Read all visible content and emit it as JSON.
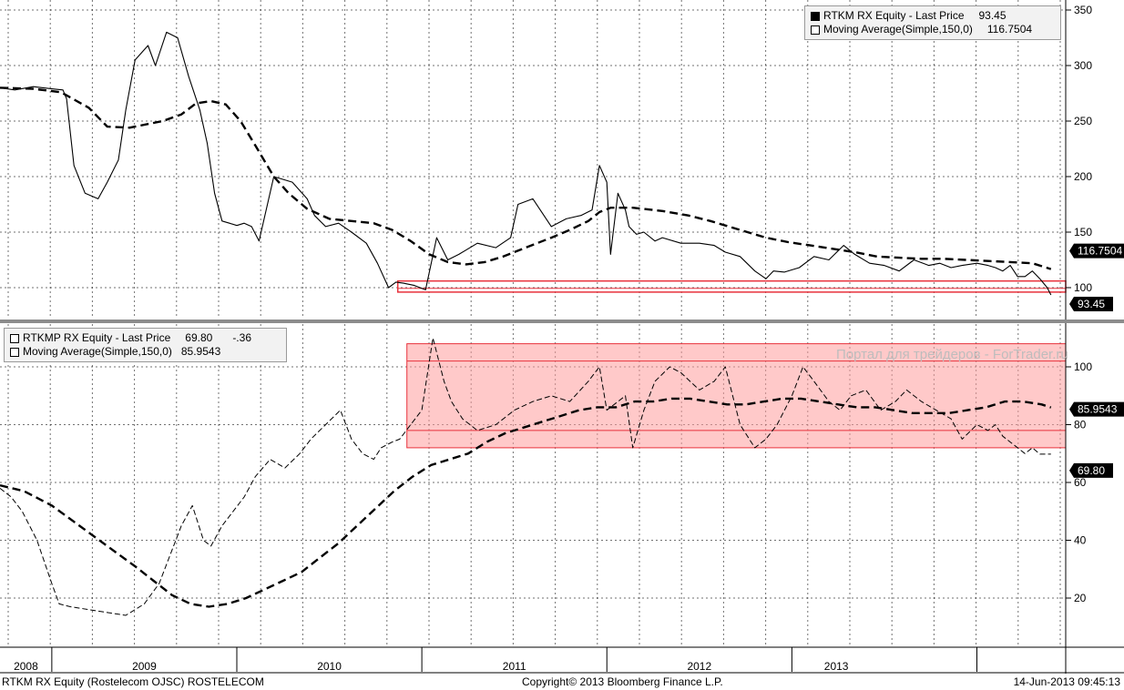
{
  "footer": {
    "left": "RTKM RX Equity (Rostelecom OJSC) ROSTELECOM",
    "center": "Copyright© 2013 Bloomberg Finance L.P.",
    "right": "14-Jun-2013 09:45:13"
  },
  "watermark": "Портал для трейдеров - ForTrader.ru",
  "colors": {
    "price": "#000000",
    "ma": "#000000",
    "band": "#ff9c9c",
    "band_line": "#e8323c",
    "grid": "#000000"
  },
  "chart_data": [
    {
      "type": "line",
      "legend": [
        {
          "name": "RTKM RX Equity - Last Price",
          "value": "93.45",
          "marker": "solid"
        },
        {
          "name": "Moving Average(Simple,150,0)",
          "value": "116.7504",
          "marker": "hollow"
        }
      ],
      "ylim": [
        70,
        350
      ],
      "yticks": [
        100,
        150,
        200,
        250,
        300,
        350
      ],
      "last_value_labels": [
        "116.7504",
        "93.45"
      ],
      "x_axis_labels": [
        "2008",
        "2009",
        "2010",
        "2011",
        "2012",
        "2013"
      ],
      "support_band": {
        "from": 2009.87,
        "to": 2013.48,
        "low": 96,
        "high": 106
      },
      "series": [
        {
          "name": "RTKM RX Equity - Last Price",
          "style": "solid",
          "x": [
            2007.72,
            2007.8,
            2007.9,
            2008.0,
            2008.06,
            2008.08,
            2008.12,
            2008.18,
            2008.25,
            2008.3,
            2008.36,
            2008.4,
            2008.45,
            2008.52,
            2008.56,
            2008.62,
            2008.68,
            2008.74,
            2008.8,
            2008.84,
            2008.88,
            2008.92,
            2008.96,
            2009.0,
            2009.04,
            2009.08,
            2009.12,
            2009.2,
            2009.3,
            2009.38,
            2009.42,
            2009.48,
            2009.55,
            2009.62,
            2009.7,
            2009.76,
            2009.82,
            2009.86,
            2009.9,
            2009.96,
            2010.02,
            2010.08,
            2010.14,
            2010.2,
            2010.3,
            2010.4,
            2010.48,
            2010.52,
            2010.6,
            2010.7,
            2010.78,
            2010.86,
            2010.92,
            2010.96,
            2011.0,
            2011.02,
            2011.06,
            2011.1,
            2011.12,
            2011.16,
            2011.2,
            2011.26,
            2011.3,
            2011.4,
            2011.5,
            2011.58,
            2011.64,
            2011.72,
            2011.8,
            2011.86,
            2011.9,
            2011.96,
            2012.04,
            2012.12,
            2012.2,
            2012.28,
            2012.34,
            2012.42,
            2012.5,
            2012.58,
            2012.66,
            2012.74,
            2012.8,
            2012.86,
            2012.92,
            2013.0,
            2013.06,
            2013.1,
            2013.14,
            2013.18,
            2013.22,
            2013.26,
            2013.3,
            2013.34,
            2013.38,
            2013.4
          ],
          "y": [
            280,
            278,
            281,
            279,
            278,
            270,
            210,
            185,
            180,
            195,
            215,
            260,
            305,
            318,
            300,
            330,
            325,
            290,
            260,
            230,
            185,
            160,
            158,
            156,
            158,
            155,
            142,
            200,
            195,
            180,
            165,
            155,
            158,
            150,
            140,
            122,
            100,
            105,
            104,
            102,
            98,
            145,
            125,
            130,
            140,
            136,
            145,
            175,
            180,
            155,
            162,
            165,
            170,
            210,
            195,
            130,
            185,
            170,
            155,
            148,
            150,
            142,
            145,
            140,
            140,
            138,
            132,
            128,
            115,
            108,
            115,
            114,
            118,
            128,
            125,
            138,
            130,
            122,
            120,
            115,
            125,
            120,
            122,
            118,
            120,
            122,
            120,
            118,
            115,
            120,
            110,
            110,
            115,
            108,
            100,
            93.45
          ]
        },
        {
          "name": "Moving Average(Simple,150,0)",
          "style": "dashed",
          "x": [
            2007.72,
            2007.9,
            2008.05,
            2008.2,
            2008.3,
            2008.42,
            2008.6,
            2008.7,
            2008.78,
            2008.86,
            2008.94,
            2009.02,
            2009.1,
            2009.2,
            2009.28,
            2009.38,
            2009.5,
            2009.62,
            2009.74,
            2009.84,
            2009.94,
            2010.04,
            2010.14,
            2010.24,
            2010.34,
            2010.44,
            2010.56,
            2010.7,
            2010.8,
            2010.9,
            2010.96,
            2011.02,
            2011.14,
            2011.3,
            2011.44,
            2011.56,
            2011.66,
            2011.76,
            2011.86,
            2011.98,
            2012.1,
            2012.22,
            2012.34,
            2012.46,
            2012.58,
            2012.7,
            2012.82,
            2012.94,
            2013.06,
            2013.18,
            2013.3,
            2013.4
          ],
          "y": [
            280,
            279,
            276,
            262,
            245,
            244,
            250,
            256,
            266,
            268,
            265,
            250,
            228,
            200,
            185,
            171,
            162,
            160,
            158,
            152,
            142,
            130,
            123,
            121,
            123,
            128,
            136,
            145,
            152,
            160,
            168,
            172,
            172,
            169,
            165,
            160,
            155,
            150,
            145,
            141,
            138,
            135,
            132,
            128,
            127,
            126,
            126,
            125,
            124,
            123,
            122,
            116.75
          ]
        }
      ]
    },
    {
      "type": "line",
      "legend": [
        {
          "name": "RTKMP RX Equity - Last Price",
          "value": "69.80",
          "change": "-.36",
          "marker": "hollow"
        },
        {
          "name": "Moving Average(Simple,150,0)",
          "value": "85.9543",
          "marker": "hollow"
        }
      ],
      "ylim": [
        5,
        113
      ],
      "yticks": [
        20,
        40,
        60,
        80,
        100
      ],
      "last_value_labels": [
        "85.9543",
        "69.80"
      ],
      "x_axis_labels": [
        "2008",
        "2009",
        "2010",
        "2011",
        "2012",
        "2013"
      ],
      "range_band": {
        "from": 2009.87,
        "to": 2013.48,
        "low": 72,
        "high": 108,
        "inner_lines": [
          102,
          78
        ]
      },
      "series": [
        {
          "name": "RTKMP RX Equity - Last Price",
          "style": "dashed-thin",
          "x": [
            2007.72,
            2007.78,
            2007.84,
            2007.92,
            2008.0,
            2008.04,
            2008.1,
            2008.2,
            2008.3,
            2008.4,
            2008.5,
            2008.58,
            2008.64,
            2008.7,
            2008.76,
            2008.82,
            2008.86,
            2008.92,
            2008.98,
            2009.04,
            2009.1,
            2009.18,
            2009.26,
            2009.34,
            2009.4,
            2009.48,
            2009.56,
            2009.62,
            2009.68,
            2009.74,
            2009.78,
            2009.84,
            2009.88,
            2009.94,
            2010.0,
            2010.06,
            2010.12,
            2010.16,
            2010.22,
            2010.3,
            2010.4,
            2010.5,
            2010.6,
            2010.7,
            2010.8,
            2010.9,
            2010.96,
            2011.0,
            2011.06,
            2011.1,
            2011.14,
            2011.2,
            2011.26,
            2011.34,
            2011.4,
            2011.5,
            2011.58,
            2011.64,
            2011.72,
            2011.8,
            2011.86,
            2011.92,
            2012.0,
            2012.06,
            2012.12,
            2012.2,
            2012.26,
            2012.32,
            2012.4,
            2012.48,
            2012.56,
            2012.62,
            2012.7,
            2012.78,
            2012.86,
            2012.92,
            2013.0,
            2013.06,
            2013.1,
            2013.14,
            2013.18,
            2013.22,
            2013.26,
            2013.3,
            2013.34,
            2013.4
          ],
          "y": [
            58,
            55,
            50,
            40,
            25,
            18,
            17,
            16,
            15,
            14,
            18,
            25,
            35,
            45,
            52,
            40,
            38,
            45,
            50,
            55,
            62,
            68,
            65,
            70,
            75,
            80,
            85,
            75,
            70,
            68,
            72,
            74,
            75,
            80,
            85,
            110,
            95,
            88,
            82,
            78,
            80,
            85,
            88,
            90,
            88,
            95,
            100,
            85,
            88,
            90,
            72,
            85,
            95,
            100,
            98,
            92,
            95,
            100,
            80,
            72,
            75,
            80,
            90,
            100,
            95,
            88,
            85,
            90,
            92,
            85,
            88,
            92,
            88,
            85,
            82,
            75,
            80,
            78,
            80,
            76,
            74,
            72,
            70,
            72,
            69.8,
            69.8
          ]
        },
        {
          "name": "Moving Average(Simple,150,0)",
          "style": "dashed",
          "x": [
            2007.72,
            2007.85,
            2008.0,
            2008.15,
            2008.3,
            2008.45,
            2008.55,
            2008.65,
            2008.75,
            2008.85,
            2008.95,
            2009.05,
            2009.15,
            2009.25,
            2009.35,
            2009.45,
            2009.55,
            2009.65,
            2009.75,
            2009.85,
            2009.95,
            2010.05,
            2010.15,
            2010.25,
            2010.35,
            2010.45,
            2010.55,
            2010.65,
            2010.75,
            2010.85,
            2010.95,
            2011.05,
            2011.15,
            2011.25,
            2011.35,
            2011.45,
            2011.55,
            2011.65,
            2011.75,
            2011.85,
            2011.95,
            2012.05,
            2012.15,
            2012.25,
            2012.35,
            2012.45,
            2012.55,
            2012.65,
            2012.75,
            2012.85,
            2012.95,
            2013.05,
            2013.15,
            2013.25,
            2013.35,
            2013.4
          ],
          "y": [
            59,
            57,
            52,
            45,
            38,
            31,
            26,
            21,
            18,
            17,
            18,
            20,
            23,
            26,
            29,
            34,
            39,
            45,
            51,
            57,
            62,
            66,
            68,
            70,
            74,
            77,
            79,
            81,
            83,
            85,
            86,
            86,
            88,
            88,
            89,
            89,
            88,
            87,
            87,
            88,
            89,
            89,
            88,
            87,
            86,
            86,
            85,
            84,
            84,
            84,
            85,
            86,
            88,
            88,
            87,
            85.95
          ]
        }
      ]
    }
  ]
}
